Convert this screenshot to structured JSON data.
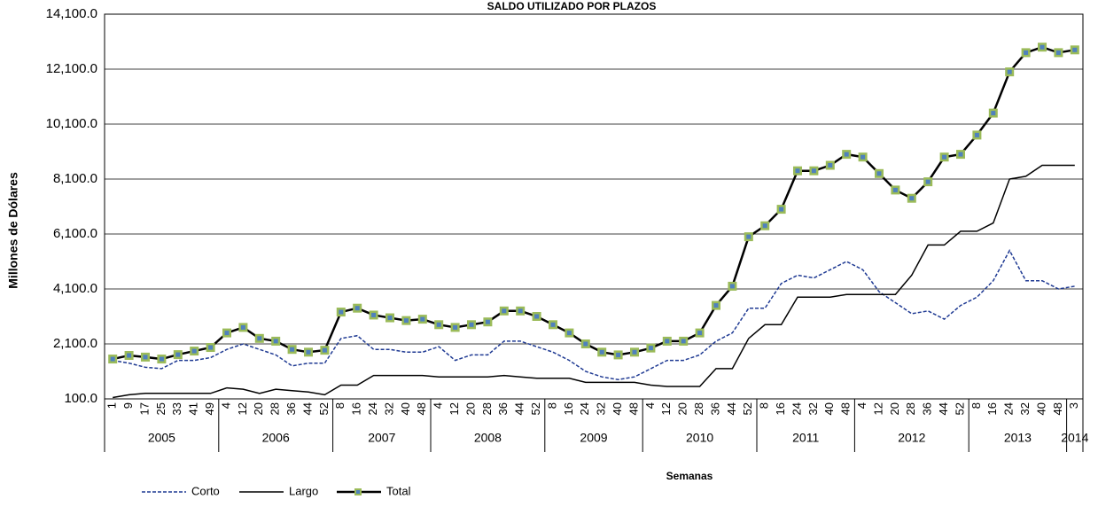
{
  "chart_data": {
    "type": "line",
    "title": "SALDO UTILIZADO POR PLAZOS",
    "y_label": "Millones de Dólares",
    "x_label": "Semanas",
    "categories": [
      "1",
      "9",
      "17",
      "25",
      "33",
      "41",
      "49",
      "4",
      "12",
      "20",
      "28",
      "36",
      "44",
      "52",
      "8",
      "16",
      "24",
      "32",
      "40",
      "48",
      "4",
      "12",
      "20",
      "28",
      "36",
      "44",
      "52",
      "8",
      "16",
      "24",
      "32",
      "40",
      "48",
      "4",
      "12",
      "20",
      "28",
      "36",
      "44",
      "52",
      "8",
      "16",
      "24",
      "32",
      "40",
      "48",
      "4",
      "12",
      "20",
      "28",
      "36",
      "44",
      "52",
      "8",
      "16",
      "24",
      "32",
      "40",
      "48",
      "3"
    ],
    "year_labels": [
      "2005",
      "2006",
      "2007",
      "2008",
      "2009",
      "2010",
      "2011",
      "2012",
      "2013",
      "2014"
    ],
    "series": [
      {
        "name": "Corto",
        "color": "#1f3a93",
        "dash": true,
        "values": [
          1500,
          1400,
          1250,
          1200,
          1500,
          1500,
          1600,
          1900,
          2100,
          1900,
          1700,
          1300,
          1400,
          1400,
          2300,
          2400,
          1900,
          1900,
          1800,
          1800,
          2000,
          1500,
          1700,
          1700,
          2200,
          2200,
          2000,
          1800,
          1500,
          1100,
          900,
          800,
          900,
          1200,
          1500,
          1500,
          1700,
          2200,
          2500,
          3400,
          3400,
          4300,
          4600,
          4500,
          4800,
          5100,
          4800,
          4000,
          3600,
          3200,
          3300,
          3000,
          3500,
          3800,
          4400,
          5500,
          4400,
          4400,
          4100,
          4200
        ]
      },
      {
        "name": "Largo",
        "color": "#000000",
        "values": [
          150,
          250,
          300,
          300,
          300,
          300,
          300,
          500,
          450,
          300,
          450,
          400,
          350,
          250,
          600,
          600,
          950,
          950,
          950,
          950,
          900,
          900,
          900,
          900,
          950,
          900,
          850,
          850,
          850,
          700,
          700,
          700,
          700,
          600,
          550,
          550,
          550,
          1200,
          1200,
          2300,
          2800,
          2800,
          3800,
          3800,
          3800,
          3900,
          3900,
          3900,
          3900,
          4600,
          5700,
          5700,
          6200,
          6200,
          6500,
          8100,
          8200,
          8600,
          8600,
          8600
        ]
      },
      {
        "name": "Total",
        "color": "#000000",
        "marker_fill": "#9bbb59",
        "marker_center": "#4f81bd",
        "values": [
          1550,
          1680,
          1620,
          1550,
          1710,
          1840,
          1970,
          2500,
          2700,
          2300,
          2200,
          1900,
          1800,
          1870,
          3260,
          3400,
          3150,
          3050,
          2950,
          3000,
          2800,
          2700,
          2800,
          2900,
          3300,
          3300,
          3100,
          2800,
          2500,
          2100,
          1800,
          1700,
          1800,
          1950,
          2200,
          2200,
          2500,
          3500,
          4200,
          6000,
          6400,
          7000,
          8400,
          8400,
          8600,
          9000,
          8900,
          8300,
          7700,
          7400,
          8000,
          8900,
          9000,
          9700,
          10500,
          12000,
          12700,
          12900,
          12700,
          12800
        ]
      }
    ],
    "ylim": [
      100,
      14100
    ],
    "yticks": [
      {
        "value": 100,
        "label": "100.0"
      },
      {
        "value": 2100,
        "label": "2,100.0"
      },
      {
        "value": 4100,
        "label": "4,100.0"
      },
      {
        "value": 6100,
        "label": "6,100.0"
      },
      {
        "value": 8100,
        "label": "8,100.0"
      },
      {
        "value": 10100,
        "label": "10,100.0"
      },
      {
        "value": 12100,
        "label": "12,100.0"
      },
      {
        "value": 14100,
        "label": "14,100.0"
      }
    ],
    "grid": true
  }
}
